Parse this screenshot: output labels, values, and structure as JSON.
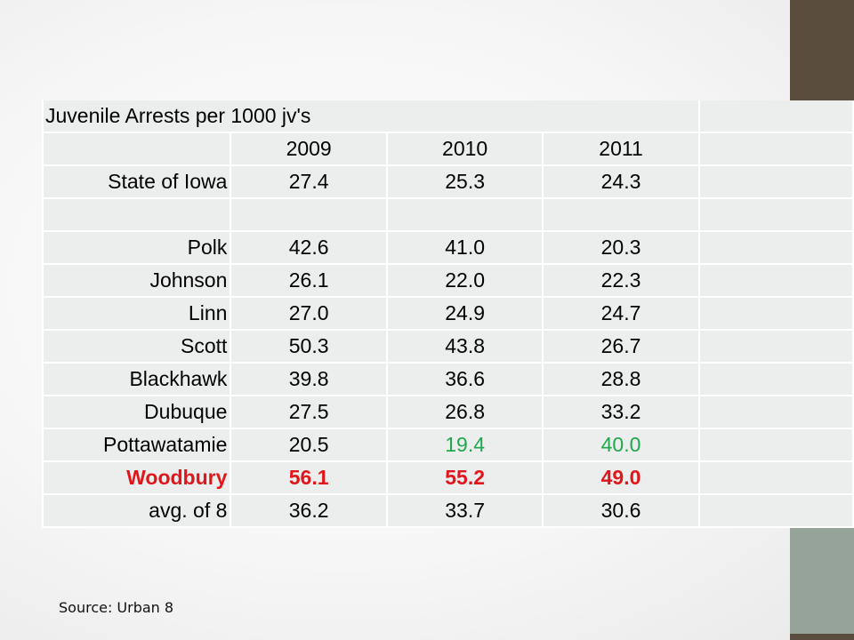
{
  "table": {
    "title": "Juvenile Arrests per 1000 jv's",
    "years": [
      "2009",
      "2010",
      "2011"
    ],
    "rows": [
      {
        "label": "State of Iowa",
        "values": [
          "27.4",
          "25.3",
          "24.3"
        ]
      },
      {
        "label": "",
        "values": [
          "",
          "",
          ""
        ]
      },
      {
        "label": "Polk",
        "values": [
          "42.6",
          "41.0",
          "20.3"
        ]
      },
      {
        "label": "Johnson",
        "values": [
          "26.1",
          "22.0",
          "22.3"
        ]
      },
      {
        "label": "Linn",
        "values": [
          "27.0",
          "24.9",
          "24.7"
        ]
      },
      {
        "label": "Scott",
        "values": [
          "50.3",
          "43.8",
          "26.7"
        ]
      },
      {
        "label": "Blackhawk",
        "values": [
          "39.8",
          "36.6",
          "28.8"
        ]
      },
      {
        "label": "Dubuque",
        "values": [
          "27.5",
          "26.8",
          "33.2"
        ]
      },
      {
        "label": "Pottawatamie",
        "values": [
          "20.5",
          "19.4",
          "40.0"
        ]
      },
      {
        "label": "Woodbury",
        "values": [
          "56.1",
          "55.2",
          "49.0"
        ]
      },
      {
        "label": "avg. of 8",
        "values": [
          "36.2",
          "33.7",
          "30.6"
        ]
      }
    ]
  },
  "colors": {
    "highlight_green": "#1fa84a",
    "highlight_red": "#e0161b",
    "side_bar_dark": "#5b4d3e",
    "side_bar_accent": "#95a398"
  },
  "source": "Source: Urban 8"
}
